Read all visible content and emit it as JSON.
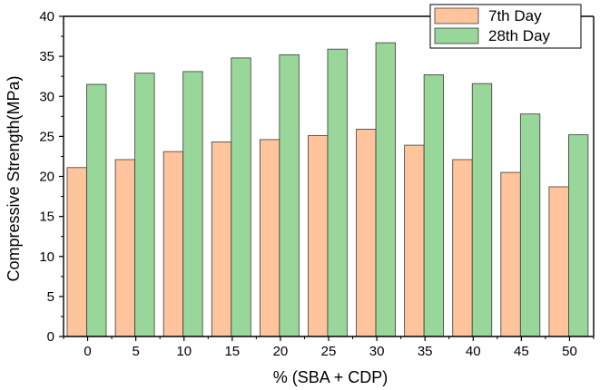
{
  "chart_data": {
    "type": "bar",
    "title": "",
    "xlabel": "% (SBA + CDP)",
    "ylabel": "Compressive Strength(MPa)",
    "ylim": [
      0,
      40
    ],
    "yticks": [
      0,
      5,
      10,
      15,
      20,
      25,
      30,
      35,
      40
    ],
    "categories": [
      "0",
      "5",
      "10",
      "15",
      "20",
      "25",
      "30",
      "35",
      "40",
      "45",
      "50"
    ],
    "series": [
      {
        "name": "7th Day",
        "color": "#FFC49B",
        "values": [
          21.1,
          22.1,
          23.1,
          24.3,
          24.6,
          25.1,
          25.9,
          23.9,
          22.1,
          20.5,
          18.7
        ]
      },
      {
        "name": "28th Day",
        "color": "#98D69A",
        "values": [
          31.5,
          32.9,
          33.1,
          34.8,
          35.2,
          35.9,
          36.7,
          32.7,
          31.6,
          27.8,
          25.2
        ]
      }
    ],
    "legend_position": "top-right",
    "grid": false
  }
}
